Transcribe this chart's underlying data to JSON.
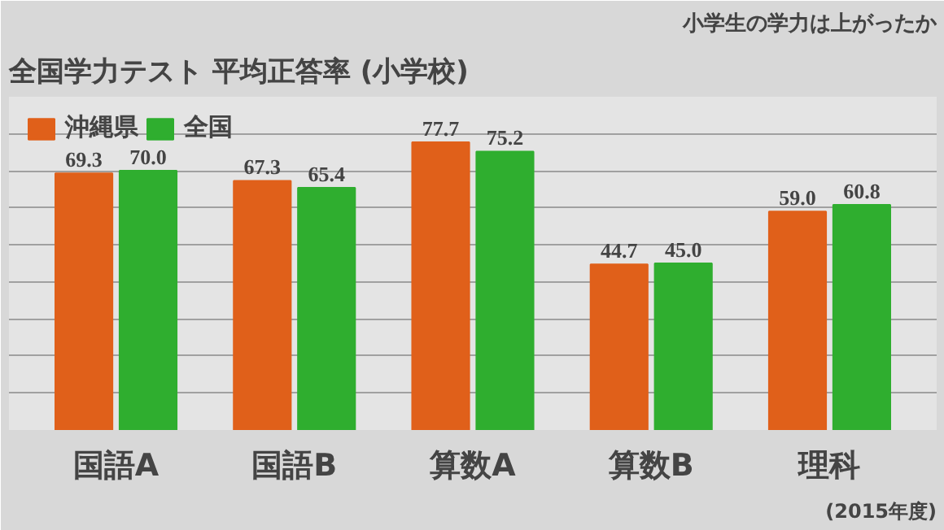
{
  "chart_data": {
    "type": "bar",
    "title": "全国学力テスト 平均正答率 (小学校)",
    "categories": [
      "国語A",
      "国語B",
      "算数A",
      "算数B",
      "理科"
    ],
    "series": [
      {
        "name": "沖縄県",
        "color": "#e0601a",
        "values": [
          69.3,
          67.3,
          77.7,
          44.7,
          59.0
        ],
        "value_labels": [
          "69.3",
          "67.3",
          "77.7",
          "44.7",
          "59.0"
        ]
      },
      {
        "name": "全国",
        "color": "#2fae2f",
        "values": [
          70.0,
          65.4,
          75.2,
          45.0,
          60.8
        ],
        "value_labels": [
          "70.0",
          "65.4",
          "75.2",
          "45.0",
          "60.8"
        ]
      }
    ],
    "ylim": [
      0,
      90
    ],
    "yticks": [
      {
        "value": 0,
        "label": null
      },
      {
        "value": 10,
        "label": null
      },
      {
        "value": 20,
        "label": null
      },
      {
        "value": 30,
        "label": null
      },
      {
        "value": 40,
        "label": null
      },
      {
        "value": 50,
        "label": null
      },
      {
        "value": 60,
        "label": null
      },
      {
        "value": 70,
        "label": null
      },
      {
        "value": 80,
        "label": null
      },
      {
        "value": 90,
        "label": null
      }
    ],
    "tick_labels": "x",
    "grid": "y",
    "legend": "top left",
    "annotations": [
      "小学生の学力は上がったか",
      "(2015年度)"
    ]
  }
}
